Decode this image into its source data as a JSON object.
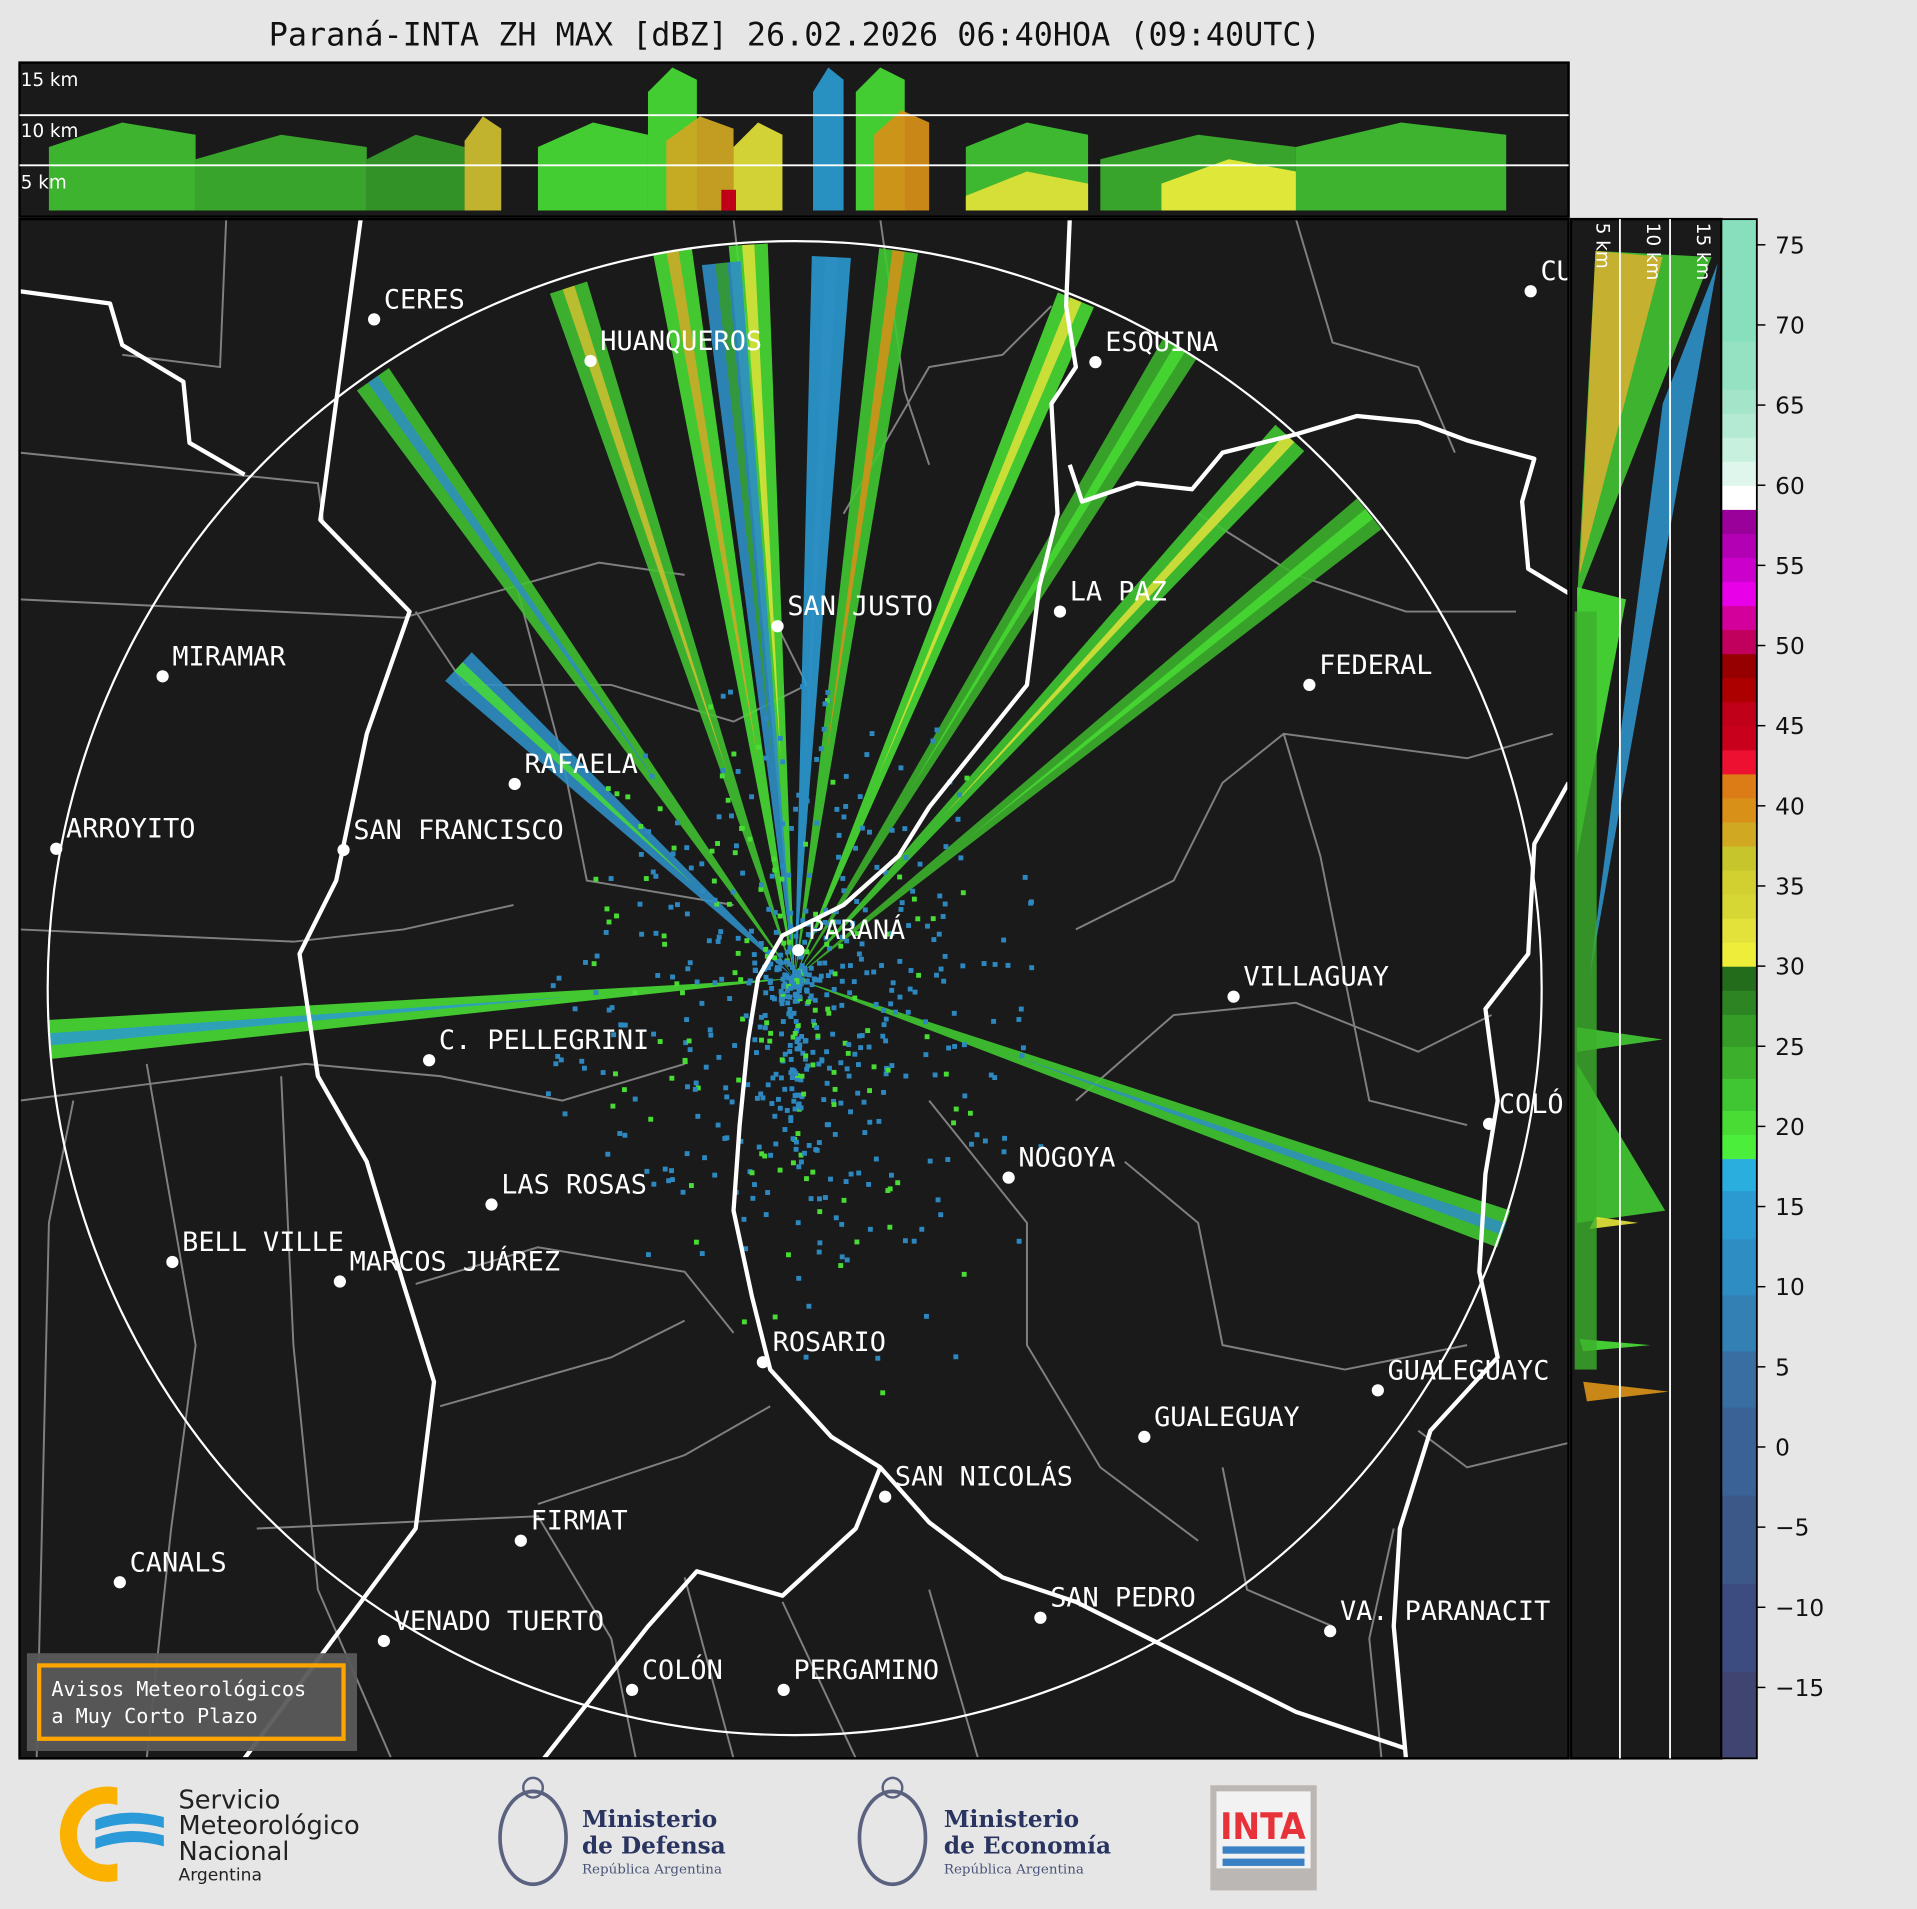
{
  "title": "Paraná-INTA ZH MAX [dBZ] 26.02.2026 06:40HOA (09:40UTC)",
  "top_panel": {
    "labels": [
      "15 km",
      "10 km",
      "5 km"
    ]
  },
  "side_panel": {
    "labels": [
      "5 km",
      "10 km",
      "15 km"
    ]
  },
  "cities": [
    "CERES",
    "HUANQUEROS",
    "ESQUINA",
    "CU",
    "SAN JUSTO",
    "LA PAZ",
    "MIRAMAR",
    "FEDERAL",
    "RAFAELA",
    "ARROYITO",
    "SAN FRANCISCO",
    "PARANÁ",
    "VILLAGUAY",
    "C. PELLEGRINI",
    "COLÓ",
    "NOGOYA",
    "LAS ROSAS",
    "BELL VILLE",
    "MARCOS JUÁREZ",
    "ROSARIO",
    "GUALEGUAYC",
    "GUALEGUAY",
    "SAN NICOLÁS",
    "FIRMAT",
    "CANALS",
    "VENADO TUERTO",
    "SAN PEDRO",
    "VA. PARANACIT",
    "COLÓN",
    "PERGAMINO"
  ],
  "colorbar": {
    "range_dbz": [
      -19.4,
      76.6
    ],
    "ticks": [
      "75",
      "70",
      "65",
      "60",
      "55",
      "50",
      "45",
      "40",
      "35",
      "30",
      "25",
      "20",
      "15",
      "10",
      "5",
      "0",
      "−5",
      "−10",
      "−15"
    ],
    "tick_values": [
      75,
      70,
      65,
      60,
      55,
      50,
      45,
      40,
      35,
      30,
      25,
      20,
      15,
      10,
      5,
      0,
      -5,
      -10,
      -15
    ],
    "bands": [
      {
        "from": -19.4,
        "to": -14,
        "color": "#3f4470"
      },
      {
        "from": -14,
        "to": -8.5,
        "color": "#3d4c80"
      },
      {
        "from": -8.5,
        "to": -3,
        "color": "#3b5888"
      },
      {
        "from": -3,
        "to": 2.5,
        "color": "#3a6296"
      },
      {
        "from": 2.5,
        "to": 6,
        "color": "#386ea2"
      },
      {
        "from": 6,
        "to": 9.5,
        "color": "#3280b4"
      },
      {
        "from": 9.5,
        "to": 13,
        "color": "#2e8ec4"
      },
      {
        "from": 13,
        "to": 16,
        "color": "#2a9ad0"
      },
      {
        "from": 16,
        "to": 18,
        "color": "#2aaede"
      },
      {
        "from": 18,
        "to": 19.5,
        "color": "#4cee3c"
      },
      {
        "from": 19.5,
        "to": 21,
        "color": "#48dc34"
      },
      {
        "from": 21,
        "to": 23,
        "color": "#40c632"
      },
      {
        "from": 23,
        "to": 25,
        "color": "#3cb02c"
      },
      {
        "from": 25,
        "to": 27,
        "color": "#359c28"
      },
      {
        "from": 27,
        "to": 28.5,
        "color": "#2c8422"
      },
      {
        "from": 28.5,
        "to": 30,
        "color": "#226c1c"
      },
      {
        "from": 30,
        "to": 31.5,
        "color": "#eeee3a"
      },
      {
        "from": 31.5,
        "to": 33,
        "color": "#e2e23a"
      },
      {
        "from": 33,
        "to": 34.5,
        "color": "#d6d634"
      },
      {
        "from": 34.5,
        "to": 36,
        "color": "#d2d030"
      },
      {
        "from": 36,
        "to": 37.5,
        "color": "#c6c62c"
      },
      {
        "from": 37.5,
        "to": 39,
        "color": "#d0a822"
      },
      {
        "from": 39,
        "to": 40.5,
        "color": "#d89018"
      },
      {
        "from": 40.5,
        "to": 42,
        "color": "#dc7c16"
      },
      {
        "from": 42,
        "to": 43.5,
        "color": "#ee1030"
      },
      {
        "from": 43.5,
        "to": 45,
        "color": "#c8001c"
      },
      {
        "from": 45,
        "to": 46.5,
        "color": "#c00018"
      },
      {
        "from": 46.5,
        "to": 48,
        "color": "#ac0000"
      },
      {
        "from": 48,
        "to": 49.5,
        "color": "#960000"
      },
      {
        "from": 49.5,
        "to": 51,
        "color": "#c0005c"
      },
      {
        "from": 51,
        "to": 52.5,
        "color": "#d4009c"
      },
      {
        "from": 52.5,
        "to": 54,
        "color": "#e800e8"
      },
      {
        "from": 54,
        "to": 55.5,
        "color": "#cc00cc"
      },
      {
        "from": 55.5,
        "to": 57,
        "color": "#b400b4"
      },
      {
        "from": 57,
        "to": 58.5,
        "color": "#9a009a"
      },
      {
        "from": 58.5,
        "to": 60,
        "color": "#ffffff"
      },
      {
        "from": 60,
        "to": 61.5,
        "color": "#dff6ec"
      },
      {
        "from": 61.5,
        "to": 63,
        "color": "#c8f0de"
      },
      {
        "from": 63,
        "to": 64.5,
        "color": "#b4ead4"
      },
      {
        "from": 64.5,
        "to": 66,
        "color": "#a4e4c8"
      },
      {
        "from": 66,
        "to": 69,
        "color": "#94e2c2"
      },
      {
        "from": 69,
        "to": 76.6,
        "color": "#88dfbd"
      }
    ]
  },
  "watermark": {
    "line1": "Avisos Meteorológicos",
    "line2": "a Muy Corto Plazo",
    "border_color": "#ffa500"
  },
  "logos": {
    "smn": {
      "line1": "Servicio",
      "line2": "Meteorológico",
      "line3": "Nacional",
      "line4": "Argentina"
    },
    "defensa": {
      "line1": "Ministerio",
      "line2": "de Defensa",
      "line3": "República Argentina"
    },
    "economia": {
      "line1": "Ministerio",
      "line2": "de Economía",
      "line3": "República Argentina"
    },
    "inta": {
      "text": "INTA"
    }
  },
  "colors": {
    "background": "#e6e6e6",
    "map": "#1a1a1a",
    "border_major": "#ffffff",
    "border_minor": "#808080"
  }
}
